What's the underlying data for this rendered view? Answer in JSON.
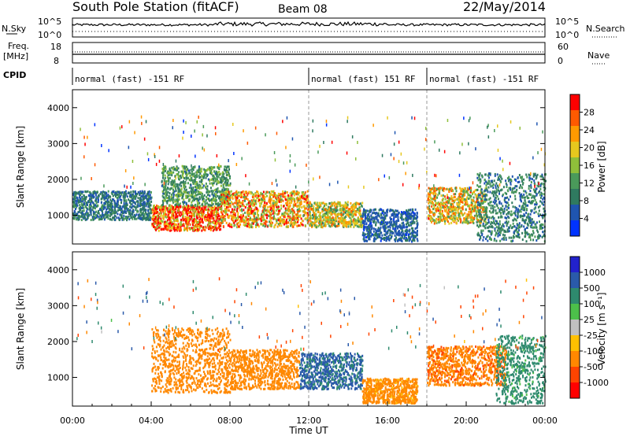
{
  "header": {
    "station_title": "South Pole Station (fitACF)",
    "beam": "Beam 08",
    "date": "22/May/2014"
  },
  "top_panels": {
    "nsky_label": "N.Sky",
    "nsky_ticks": [
      "10^5",
      "10^0"
    ],
    "nsearch_label": "N.Search",
    "nsearch_ticks": [
      "10^5",
      "10^0"
    ],
    "freq_label_line1": "Freq.",
    "freq_label_line2": "[MHz]",
    "freq_ticks": [
      "18",
      "8"
    ],
    "nave_label": "Nave",
    "nave_ticks": [
      "60",
      "0"
    ],
    "cpid_label": "CPID"
  },
  "cpid_segments": [
    {
      "start_hour": 0,
      "end_hour": 12,
      "label": "normal (fast) -151 RF"
    },
    {
      "start_hour": 12,
      "end_hour": 18,
      "label": "normal (fast) 151 RF"
    },
    {
      "start_hour": 18,
      "end_hour": 24,
      "label": "normal (fast) -151 RF"
    }
  ],
  "chart_data": [
    {
      "type": "heatmap",
      "variable": "power",
      "ylabel": "Slant Range [km]",
      "xlabel": "",
      "xlim": [
        0,
        24
      ],
      "ylim": [
        200,
        4500
      ],
      "yticks": [
        1000,
        2000,
        3000,
        4000
      ],
      "colorbar": {
        "label": "Power [dB]",
        "ticks": [
          "28",
          "24",
          "20",
          "16",
          "12",
          "8",
          "4"
        ],
        "range": [
          0,
          32
        ],
        "colors": [
          "#0033ff",
          "#1f55b0",
          "#2f7a60",
          "#4a9a5a",
          "#8fbf3a",
          "#e6c81e",
          "#ff9a00",
          "#ff5a00",
          "#ff0000"
        ]
      },
      "scatter_regions": [
        {
          "t0": 0.0,
          "t1": 4.0,
          "r0": 900,
          "r1": 1700,
          "value": 8
        },
        {
          "t0": 4.0,
          "t1": 7.5,
          "r0": 600,
          "r1": 1300,
          "value": 26
        },
        {
          "t0": 4.5,
          "t1": 8.0,
          "r0": 1300,
          "r1": 2400,
          "value": 12
        },
        {
          "t0": 7.5,
          "t1": 12.0,
          "r0": 700,
          "r1": 1700,
          "value": 22
        },
        {
          "t0": 12.0,
          "t1": 14.7,
          "r0": 700,
          "r1": 1400,
          "value": 18
        },
        {
          "t0": 14.7,
          "t1": 17.5,
          "r0": 300,
          "r1": 1200,
          "value": 6
        },
        {
          "t0": 18.0,
          "t1": 21.0,
          "r0": 800,
          "r1": 1800,
          "value": 20
        },
        {
          "t0": 20.5,
          "t1": 24.0,
          "r0": 300,
          "r1": 2200,
          "value": 9
        }
      ]
    },
    {
      "type": "heatmap",
      "variable": "velocity",
      "ylabel": "Slant Range [km]",
      "xlabel": "Time UT",
      "xlim": [
        0,
        24
      ],
      "ylim": [
        200,
        4500
      ],
      "yticks": [
        1000,
        2000,
        3000,
        4000
      ],
      "xticks": [
        "00:00",
        "04:00",
        "08:00",
        "12:00",
        "16:00",
        "20:00",
        "00:00"
      ],
      "colorbar": {
        "label": "Velocity [m s⁻¹]",
        "ticks": [
          "1000",
          "500",
          "100",
          "25",
          "-25",
          "-100",
          "-500",
          "-1000"
        ],
        "range": [
          -1000,
          1000
        ],
        "colors": [
          "#2222cc",
          "#2a5aaa",
          "#2e8a6e",
          "#4cc04a",
          "#c0c0c0",
          "#ffc000",
          "#ff8800",
          "#ff4400",
          "#ff0000"
        ]
      },
      "scatter_regions": [
        {
          "t0": 4.0,
          "t1": 8.0,
          "r0": 600,
          "r1": 2400,
          "value": -300
        },
        {
          "t0": 8.0,
          "t1": 11.5,
          "r0": 700,
          "r1": 1800,
          "value": -250
        },
        {
          "t0": 11.5,
          "t1": 14.7,
          "r0": 700,
          "r1": 1700,
          "value": 600
        },
        {
          "t0": 14.7,
          "t1": 17.5,
          "r0": 300,
          "r1": 1000,
          "value": -150
        },
        {
          "t0": 18.0,
          "t1": 22.0,
          "r0": 800,
          "r1": 1900,
          "value": -400
        },
        {
          "t0": 21.5,
          "t1": 24.0,
          "r0": 300,
          "r1": 2200,
          "value": 150
        }
      ]
    }
  ]
}
